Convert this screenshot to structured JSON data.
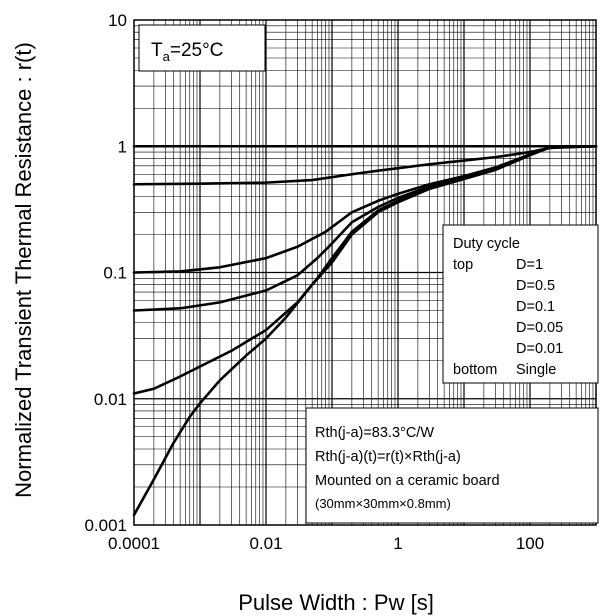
{
  "chart_data": {
    "type": "line",
    "xlabel": "Pulse Width : Pw [s]",
    "ylabel": "Normalized Transient Thermal Resistance : r(t)",
    "xscale": "log",
    "yscale": "log",
    "xlim": [
      0.0001,
      1000
    ],
    "ylim": [
      0.001,
      10
    ],
    "x_tick_labels": [
      "0.0001",
      "0.01",
      "1",
      "100"
    ],
    "y_tick_labels": [
      "0.001",
      "0.01",
      "0.1",
      "1",
      "10"
    ],
    "grid": true,
    "ambient_label": {
      "prefix": "T",
      "subscript": "a",
      "suffix": "=25°C"
    },
    "legend": {
      "title": "Duty cycle",
      "rows": [
        {
          "position": "top",
          "label": "D=1"
        },
        {
          "position": "",
          "label": "D=0.5"
        },
        {
          "position": "",
          "label": "D=0.1"
        },
        {
          "position": "",
          "label": "D=0.05"
        },
        {
          "position": "",
          "label": "D=0.01"
        },
        {
          "position": "bottom",
          "label": "Single"
        }
      ]
    },
    "info_lines": [
      "Rth(j-a)=83.3°C/W",
      "Rth(j-a)(t)=r(t)×Rth(j-a)",
      "Mounted on a ceramic board",
      "(30mm×30mm×0.8mm)"
    ],
    "series": [
      {
        "x": [
          0.0001,
          1000
        ],
        "y": [
          1,
          1
        ]
      },
      {
        "x": [
          0.0001,
          0.001,
          0.01,
          0.05,
          0.2,
          0.5,
          1,
          3,
          10,
          30,
          100,
          200,
          1000
        ],
        "y": [
          0.5,
          0.505,
          0.515,
          0.54,
          0.6,
          0.64,
          0.67,
          0.72,
          0.77,
          0.82,
          0.9,
          0.97,
          1
        ]
      },
      {
        "x": [
          0.0001,
          0.0005,
          0.002,
          0.01,
          0.03,
          0.08,
          0.2,
          0.5,
          1,
          3,
          10,
          30,
          100,
          200,
          1000
        ],
        "y": [
          0.1,
          0.102,
          0.11,
          0.13,
          0.16,
          0.21,
          0.3,
          0.37,
          0.42,
          0.5,
          0.58,
          0.68,
          0.86,
          0.98,
          1
        ]
      },
      {
        "x": [
          0.0001,
          0.0005,
          0.002,
          0.01,
          0.03,
          0.06,
          0.1,
          0.2,
          0.5,
          1,
          3,
          10,
          30,
          100,
          200,
          1000
        ],
        "y": [
          0.05,
          0.052,
          0.058,
          0.072,
          0.095,
          0.13,
          0.17,
          0.25,
          0.33,
          0.39,
          0.48,
          0.57,
          0.67,
          0.86,
          0.98,
          1
        ]
      },
      {
        "x": [
          0.0001,
          0.0002,
          0.0005,
          0.001,
          0.003,
          0.01,
          0.03,
          0.06,
          0.1,
          0.2,
          0.5,
          1,
          3,
          10,
          30,
          100,
          200,
          1000
        ],
        "y": [
          0.011,
          0.012,
          0.015,
          0.018,
          0.024,
          0.035,
          0.058,
          0.09,
          0.13,
          0.21,
          0.31,
          0.37,
          0.47,
          0.56,
          0.66,
          0.86,
          0.98,
          1
        ]
      },
      {
        "x": [
          0.0001,
          0.0002,
          0.0004,
          0.0007,
          0.001,
          0.002,
          0.005,
          0.01,
          0.02,
          0.05,
          0.1,
          0.2,
          0.5,
          1,
          3,
          10,
          30,
          100,
          200,
          1000
        ],
        "y": [
          0.0012,
          0.0023,
          0.0045,
          0.0072,
          0.0092,
          0.014,
          0.022,
          0.03,
          0.044,
          0.08,
          0.12,
          0.2,
          0.3,
          0.36,
          0.46,
          0.55,
          0.65,
          0.85,
          0.98,
          1
        ]
      }
    ]
  }
}
